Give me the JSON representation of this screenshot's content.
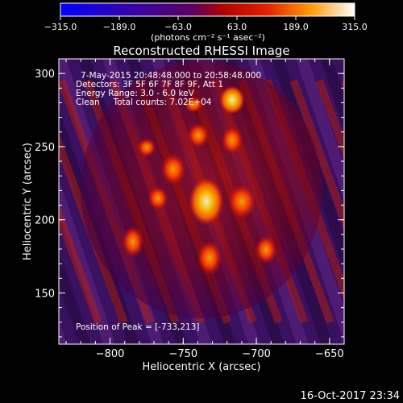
{
  "colorbar": {
    "ticks": [
      "−315.0",
      "−189.0",
      "−63.0",
      "63.0",
      "189.0",
      "315.0"
    ],
    "unit_label": "(photons cm⁻² s⁻¹ asec⁻²)",
    "range": [
      -315,
      315
    ],
    "colors": [
      "#0000ff",
      "#3a00a8",
      "#5a0060",
      "#e31f00",
      "#ff7a00",
      "#ffffff"
    ]
  },
  "plot": {
    "title": "Reconstructed RHESSI Image",
    "xlabel": "Heliocentric X (arcsec)",
    "ylabel": "Heliocentric Y (arcsec)",
    "xticks": [
      "−800",
      "−750",
      "−700",
      "−650"
    ],
    "yticks": [
      "300",
      "250",
      "200",
      "150"
    ],
    "xlim": [
      -835,
      -640
    ],
    "ylim": [
      115,
      310
    ],
    "info": [
      "7-May-2015 20:48:48.000 to 20:58:48.000",
      "Detectors: 3F 5F 6F 7F 8F 9F, Att 1",
      "Energy Range: 3.0 - 6.0 keV",
      "Clean     Total counts: 7.02E+04"
    ],
    "peak": "Position of Peak = [-733,213]"
  },
  "footer": {
    "timestamp": "16-Oct-2017 23:34"
  }
}
